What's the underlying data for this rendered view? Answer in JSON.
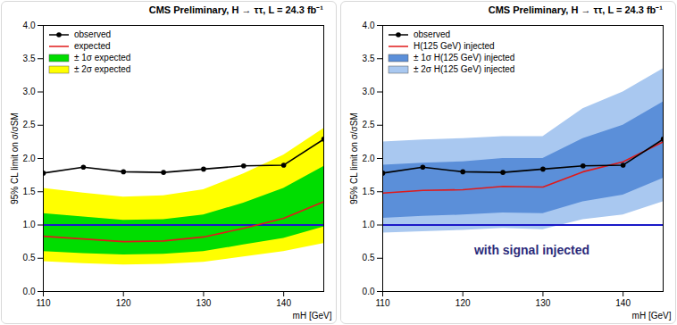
{
  "chart_data": [
    {
      "type": "line",
      "title": "CMS Preliminary, H → ττ, L = 24.3 fb⁻¹",
      "x_label": "mH [GeV]",
      "y_label": "95% CL limit on σ/σSM",
      "x": [
        110,
        115,
        120,
        125,
        130,
        135,
        140,
        145
      ],
      "xlim": [
        110,
        145
      ],
      "xticks": [
        110,
        120,
        130,
        140
      ],
      "ylim": [
        0,
        4
      ],
      "yticks": [
        {
          "value": 0,
          "label": "0.0"
        },
        {
          "value": 0.5,
          "label": "0.5"
        },
        {
          "value": 1,
          "label": "1.0"
        },
        {
          "value": 1.5,
          "label": "1.5"
        },
        {
          "value": 2,
          "label": "2.0"
        },
        {
          "value": 2.5,
          "label": "2.5"
        },
        {
          "value": 3,
          "label": "3.0"
        },
        {
          "value": 3.5,
          "label": "3.5"
        },
        {
          "value": 4,
          "label": "4.0"
        }
      ],
      "legend": "top-left",
      "series": [
        {
          "name": "observed",
          "color": "#000000",
          "marker": "circle",
          "values": [
            1.78,
            1.87,
            1.8,
            1.79,
            1.84,
            1.89,
            1.9,
            2.29
          ]
        },
        {
          "name": "expected",
          "color": "#e01a1a",
          "values": [
            0.83,
            0.79,
            0.75,
            0.76,
            0.82,
            0.95,
            1.1,
            1.35
          ]
        }
      ],
      "bands": [
        {
          "name": "± 1σ expected",
          "color": "#00dd00",
          "lower": [
            0.6,
            0.57,
            0.55,
            0.56,
            0.6,
            0.7,
            0.8,
            0.97
          ],
          "upper": [
            1.17,
            1.12,
            1.07,
            1.08,
            1.15,
            1.33,
            1.55,
            1.88
          ]
        },
        {
          "name": "± 2σ expected",
          "color": "#ffff00",
          "lower": [
            0.45,
            0.42,
            0.4,
            0.41,
            0.44,
            0.52,
            0.6,
            0.72
          ],
          "upper": [
            1.55,
            1.48,
            1.42,
            1.44,
            1.53,
            1.77,
            2.05,
            2.45
          ]
        }
      ],
      "reference_lines": [
        {
          "value": 1,
          "color": "#1a1ac8"
        }
      ]
    },
    {
      "type": "line",
      "title": "CMS Preliminary, H → ττ, L = 24.3 fb⁻¹",
      "x_label": "mH [GeV]",
      "y_label": "95% CL limit on σ/σSM",
      "x": [
        110,
        115,
        120,
        125,
        130,
        135,
        140,
        145
      ],
      "xlim": [
        110,
        145
      ],
      "xticks": [
        110,
        120,
        130,
        140
      ],
      "ylim": [
        0,
        4
      ],
      "yticks": [
        {
          "value": 0,
          "label": "0.0"
        },
        {
          "value": 0.5,
          "label": "0.5"
        },
        {
          "value": 1,
          "label": "1.0"
        },
        {
          "value": 1.5,
          "label": "1.5"
        },
        {
          "value": 2,
          "label": "2.0"
        },
        {
          "value": 2.5,
          "label": "2.5"
        },
        {
          "value": 3,
          "label": "3.0"
        },
        {
          "value": 3.5,
          "label": "3.5"
        },
        {
          "value": 4,
          "label": "4.0"
        }
      ],
      "legend": "top-left",
      "series": [
        {
          "name": "observed",
          "color": "#000000",
          "marker": "circle",
          "values": [
            1.78,
            1.87,
            1.8,
            1.79,
            1.84,
            1.89,
            1.9,
            2.29
          ]
        },
        {
          "name": "H(125 GeV) injected",
          "color": "#e01a1a",
          "values": [
            1.48,
            1.52,
            1.53,
            1.58,
            1.57,
            1.8,
            1.95,
            2.25
          ]
        }
      ],
      "bands": [
        {
          "name": "± 1σ H(125 GeV) injected",
          "color": "#5b8fd9",
          "lower": [
            1.1,
            1.13,
            1.15,
            1.18,
            1.17,
            1.35,
            1.45,
            1.7
          ],
          "upper": [
            1.9,
            1.93,
            1.95,
            2.0,
            2.0,
            2.3,
            2.5,
            2.85
          ]
        },
        {
          "name": "± 2σ H(125 GeV) injected",
          "color": "#a9c8f0",
          "lower": [
            0.88,
            0.9,
            0.92,
            0.95,
            0.93,
            1.08,
            1.15,
            1.35
          ],
          "upper": [
            2.25,
            2.28,
            2.3,
            2.33,
            2.33,
            2.75,
            3.0,
            3.35
          ]
        }
      ],
      "reference_lines": [
        {
          "value": 1,
          "color": "#1a1ac8"
        }
      ],
      "annotations": [
        "with signal injected"
      ]
    }
  ]
}
